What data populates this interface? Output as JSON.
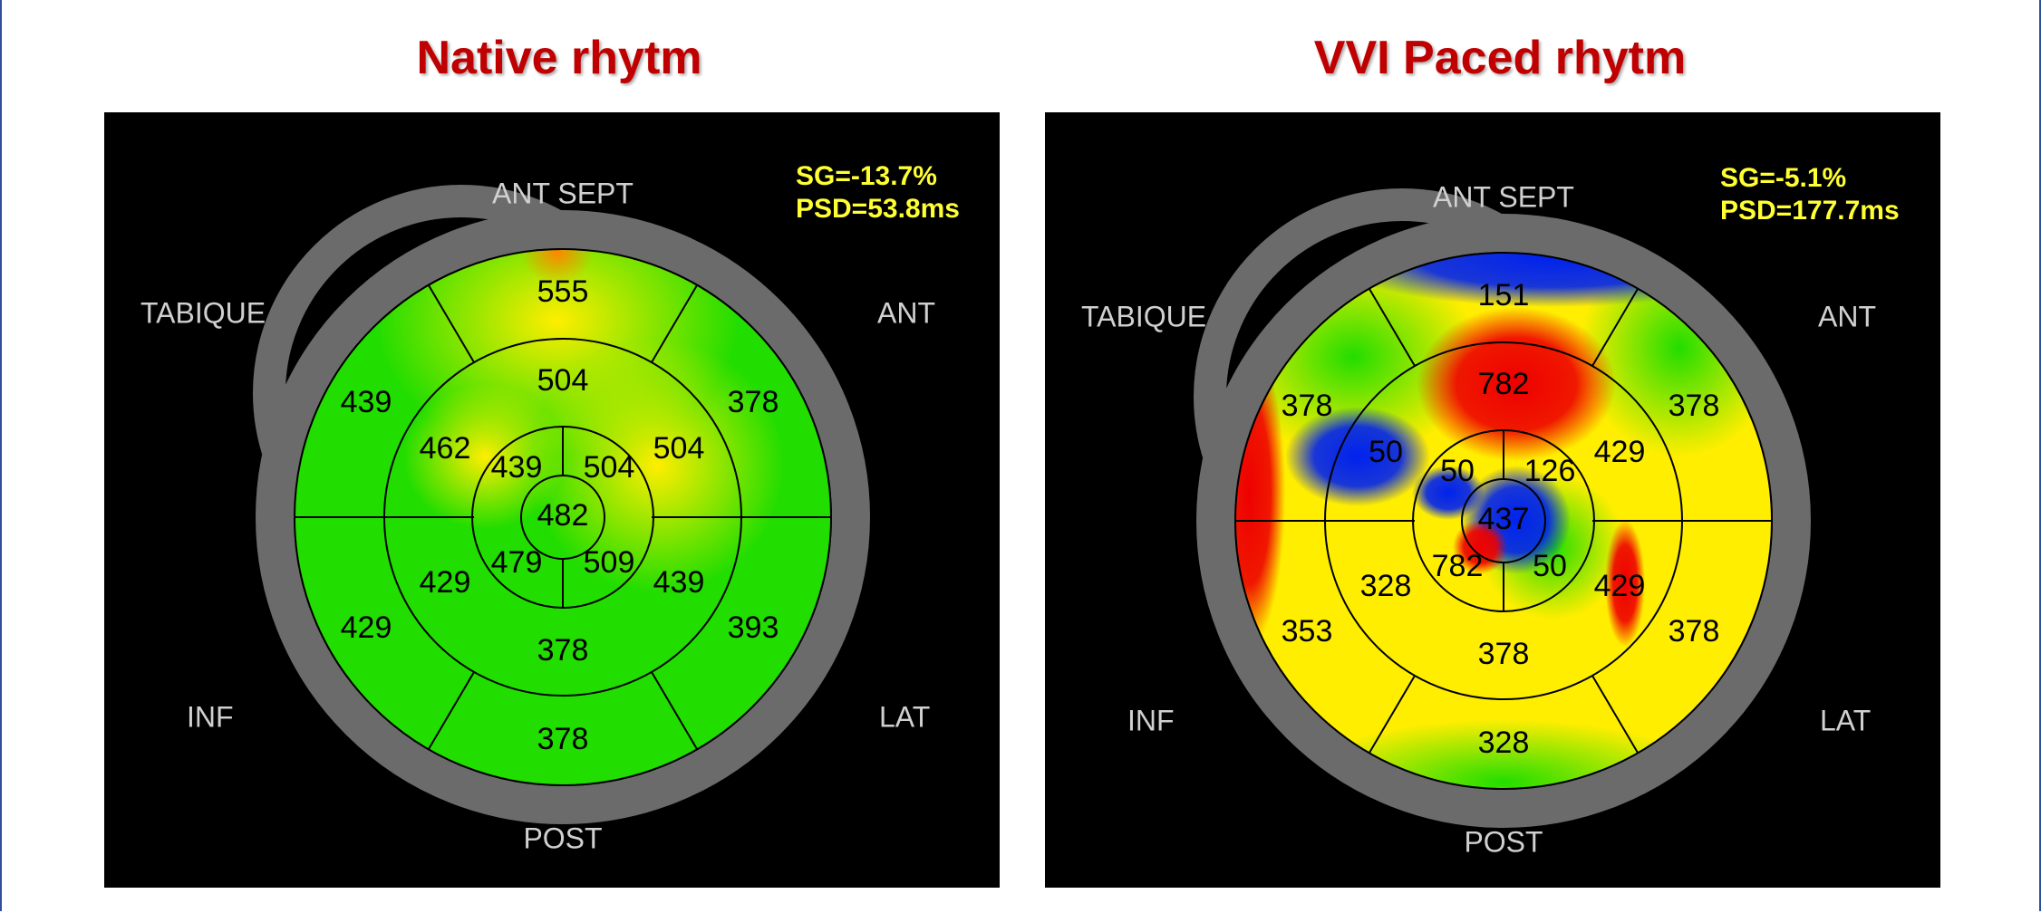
{
  "panels": [
    {
      "title": "Native rhytm",
      "sg": "SG=-13.7%",
      "psd": "PSD=53.8ms",
      "labels": {
        "ant_sept": "ANT  SEPT",
        "tabique": "TABIQUE",
        "ant": "ANT",
        "inf": "INF",
        "lat": "LAT",
        "post": "POST"
      },
      "segments": {
        "basal": [
          "555",
          "378",
          "393",
          "378",
          "429",
          "439"
        ],
        "mid": [
          "504",
          "504",
          "439",
          "378",
          "429",
          "462"
        ],
        "apical": [
          "504",
          "509",
          "479",
          "439"
        ],
        "apex": "482"
      },
      "colors": {
        "base": "#22dd00",
        "hot": "#ffee00"
      }
    },
    {
      "title": "VVI Paced rhytm",
      "sg": "SG=-5.1%",
      "psd": "PSD=177.7ms",
      "labels": {
        "ant_sept": "ANT  SEPT",
        "tabique": "TABIQUE",
        "ant": "ANT",
        "inf": "INF",
        "lat": "LAT",
        "post": "POST"
      },
      "segments": {
        "basal": [
          "151",
          "378",
          "378",
          "328",
          "353",
          "378"
        ],
        "mid": [
          "782",
          "429",
          "429",
          "378",
          "328",
          "50"
        ],
        "apical": [
          "126",
          "50",
          "782",
          "50"
        ],
        "apex": "437"
      },
      "colors": {
        "base": "#ffee00",
        "hot": "#ee0000",
        "cold": "#0022ee",
        "green": "#22dd00"
      }
    }
  ]
}
